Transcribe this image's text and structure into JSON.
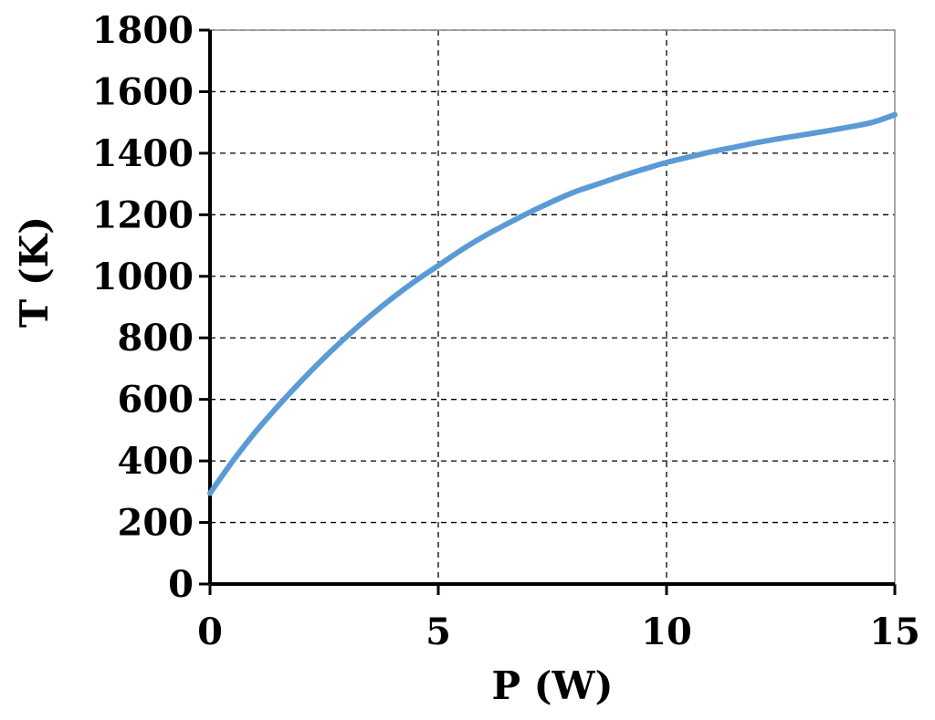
{
  "chart_data": {
    "type": "line",
    "xlabel": "P (W)",
    "ylabel": "T (K)",
    "xlim": [
      0,
      15
    ],
    "ylim": [
      0,
      1800
    ],
    "x_ticks": [
      "0",
      "5",
      "10",
      "15"
    ],
    "y_ticks": [
      "0",
      "200",
      "400",
      "600",
      "800",
      "1000",
      "1200",
      "1400",
      "1600",
      "1800"
    ],
    "grid": true,
    "series": [
      {
        "color": "#5b9bd5",
        "x": [
          0,
          0.5,
          1,
          1.5,
          2,
          2.5,
          3,
          3.5,
          4,
          4.5,
          5,
          5.5,
          6,
          6.5,
          7,
          7.5,
          8,
          8.5,
          9,
          9.5,
          10,
          10.5,
          11,
          11.5,
          12,
          12.5,
          13,
          13.5,
          14,
          14.5,
          15
        ],
        "y": [
          295,
          400,
          495,
          580,
          660,
          735,
          805,
          870,
          930,
          985,
          1035,
          1085,
          1130,
          1170,
          1208,
          1243,
          1275,
          1300,
          1325,
          1348,
          1370,
          1388,
          1405,
          1420,
          1435,
          1448,
          1460,
          1472,
          1485,
          1500,
          1525
        ]
      }
    ]
  }
}
